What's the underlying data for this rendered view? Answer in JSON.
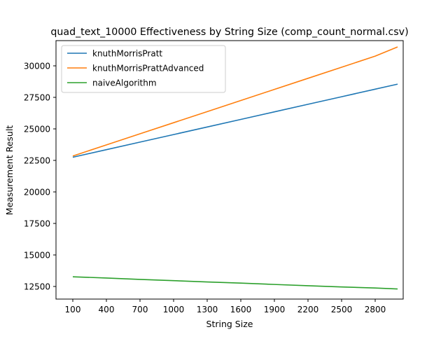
{
  "chart_data": {
    "type": "line",
    "title": "quad_text_10000 Effectiveness by String Size (comp_count_normal.csv)",
    "xlabel": "String Size",
    "ylabel": "Measurement Result",
    "xlim": [
      -50,
      3050
    ],
    "ylim": [
      11500,
      32000
    ],
    "x_ticks": [
      100,
      400,
      700,
      1000,
      1300,
      1600,
      1900,
      2200,
      2500,
      2800
    ],
    "y_ticks": [
      12500,
      15000,
      17500,
      20000,
      22500,
      25000,
      27500,
      30000
    ],
    "grid": false,
    "legend_position": "upper left",
    "x": [
      100,
      400,
      700,
      1000,
      1300,
      1600,
      1900,
      2200,
      2500,
      2800,
      3000
    ],
    "series": [
      {
        "name": "knuthMorrisPratt",
        "color": "#1f77b4",
        "values": [
          22750,
          23350,
          23950,
          24550,
          25150,
          25750,
          26350,
          26950,
          27550,
          28150,
          28550
        ]
      },
      {
        "name": "knuthMorrisPrattAdvanced",
        "color": "#ff7f0e",
        "values": [
          22850,
          23730,
          24610,
          25490,
          26370,
          27250,
          28130,
          29010,
          29890,
          30770,
          31500
        ]
      },
      {
        "name": "naiveAlgorithm",
        "color": "#2ca02c",
        "values": [
          13270,
          13170,
          13060,
          12960,
          12860,
          12770,
          12660,
          12560,
          12460,
          12380,
          12300
        ]
      }
    ]
  }
}
